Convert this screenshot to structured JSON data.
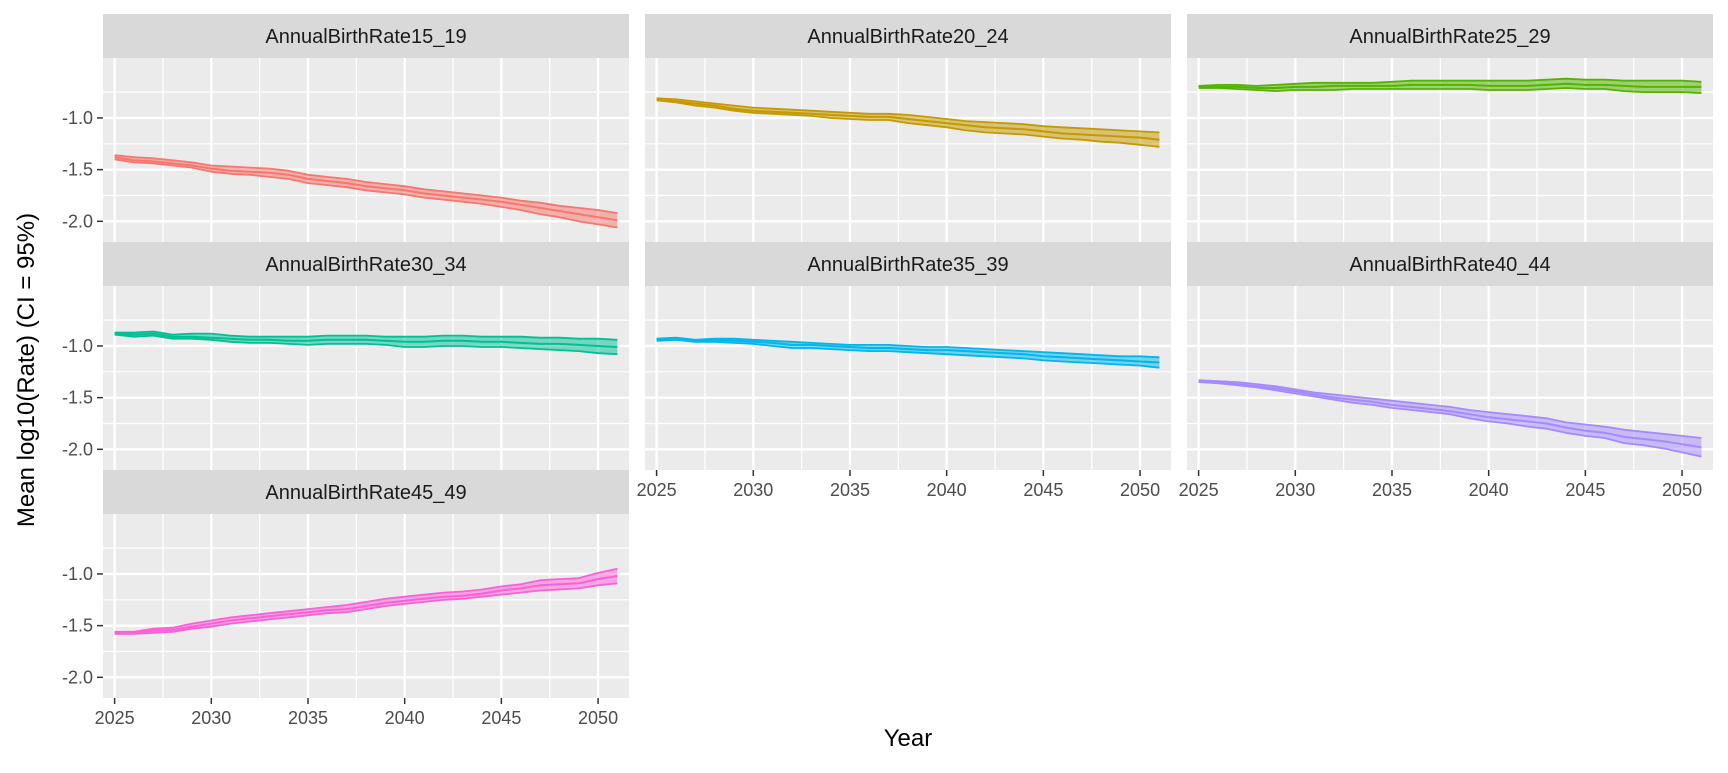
{
  "chart_data": {
    "type": "line",
    "layout": "faceted-grid",
    "xlabel": "Year",
    "ylabel": "Mean log10(Rate) (CI = 95%)",
    "xlim": [
      2024.4,
      2051.6
    ],
    "ylim": [
      -2.2,
      -0.42
    ],
    "x_ticks": [
      2025,
      2030,
      2035,
      2040,
      2045,
      2050
    ],
    "x_tick_labels": [
      "2025",
      "2030",
      "2035",
      "2040",
      "2045",
      "2050"
    ],
    "y_ticks": [
      -1.0,
      -1.5,
      -2.0
    ],
    "y_tick_labels": [
      "-1.0",
      "-1.5",
      "-2.0"
    ],
    "legend": "none",
    "grid": true,
    "x": [
      2025,
      2026,
      2027,
      2028,
      2029,
      2030,
      2031,
      2032,
      2033,
      2034,
      2035,
      2036,
      2037,
      2038,
      2039,
      2040,
      2041,
      2042,
      2043,
      2044,
      2045,
      2046,
      2047,
      2048,
      2049,
      2050,
      2051
    ],
    "facets": [
      {
        "title": "AnnualBirthRate15_19",
        "color": "#F8766D",
        "mean": [
          -1.38,
          -1.41,
          -1.42,
          -1.44,
          -1.46,
          -1.49,
          -1.51,
          -1.52,
          -1.53,
          -1.55,
          -1.59,
          -1.61,
          -1.63,
          -1.66,
          -1.68,
          -1.7,
          -1.73,
          -1.75,
          -1.77,
          -1.79,
          -1.81,
          -1.84,
          -1.87,
          -1.9,
          -1.93,
          -1.96,
          -1.99
        ],
        "lower": [
          -1.4,
          -1.43,
          -1.44,
          -1.46,
          -1.48,
          -1.52,
          -1.54,
          -1.55,
          -1.57,
          -1.59,
          -1.63,
          -1.65,
          -1.67,
          -1.7,
          -1.72,
          -1.74,
          -1.77,
          -1.79,
          -1.81,
          -1.83,
          -1.86,
          -1.89,
          -1.93,
          -1.96,
          -2.0,
          -2.03,
          -2.06
        ],
        "upper": [
          -1.36,
          -1.38,
          -1.39,
          -1.41,
          -1.43,
          -1.46,
          -1.47,
          -1.48,
          -1.49,
          -1.51,
          -1.55,
          -1.57,
          -1.59,
          -1.62,
          -1.64,
          -1.66,
          -1.69,
          -1.71,
          -1.73,
          -1.75,
          -1.77,
          -1.8,
          -1.82,
          -1.85,
          -1.87,
          -1.89,
          -1.92
        ]
      },
      {
        "title": "AnnualBirthRate20_24",
        "color": "#C49A00",
        "mean": [
          -0.82,
          -0.84,
          -0.86,
          -0.88,
          -0.91,
          -0.93,
          -0.94,
          -0.95,
          -0.96,
          -0.97,
          -0.98,
          -0.99,
          -0.99,
          -1.01,
          -1.03,
          -1.05,
          -1.07,
          -1.09,
          -1.1,
          -1.11,
          -1.13,
          -1.15,
          -1.16,
          -1.17,
          -1.18,
          -1.19,
          -1.21
        ],
        "lower": [
          -0.83,
          -0.85,
          -0.88,
          -0.9,
          -0.93,
          -0.95,
          -0.96,
          -0.97,
          -0.98,
          -1.0,
          -1.01,
          -1.02,
          -1.02,
          -1.05,
          -1.07,
          -1.09,
          -1.12,
          -1.14,
          -1.15,
          -1.16,
          -1.18,
          -1.2,
          -1.21,
          -1.23,
          -1.24,
          -1.26,
          -1.28
        ],
        "upper": [
          -0.81,
          -0.82,
          -0.84,
          -0.86,
          -0.88,
          -0.9,
          -0.91,
          -0.92,
          -0.93,
          -0.94,
          -0.95,
          -0.96,
          -0.96,
          -0.97,
          -0.99,
          -1.01,
          -1.03,
          -1.04,
          -1.05,
          -1.06,
          -1.08,
          -1.09,
          -1.1,
          -1.11,
          -1.12,
          -1.13,
          -1.14
        ]
      },
      {
        "title": "AnnualBirthRate25_29",
        "color": "#53B400",
        "mean": [
          -0.7,
          -0.7,
          -0.7,
          -0.71,
          -0.71,
          -0.7,
          -0.7,
          -0.69,
          -0.69,
          -0.69,
          -0.69,
          -0.68,
          -0.68,
          -0.68,
          -0.68,
          -0.69,
          -0.69,
          -0.69,
          -0.68,
          -0.67,
          -0.68,
          -0.68,
          -0.69,
          -0.7,
          -0.7,
          -0.7,
          -0.7
        ],
        "lower": [
          -0.71,
          -0.71,
          -0.72,
          -0.73,
          -0.74,
          -0.73,
          -0.73,
          -0.73,
          -0.72,
          -0.72,
          -0.72,
          -0.72,
          -0.72,
          -0.72,
          -0.72,
          -0.73,
          -0.73,
          -0.73,
          -0.72,
          -0.71,
          -0.72,
          -0.72,
          -0.74,
          -0.75,
          -0.75,
          -0.75,
          -0.76
        ],
        "upper": [
          -0.69,
          -0.68,
          -0.68,
          -0.69,
          -0.68,
          -0.67,
          -0.66,
          -0.66,
          -0.66,
          -0.66,
          -0.65,
          -0.64,
          -0.64,
          -0.64,
          -0.64,
          -0.64,
          -0.64,
          -0.64,
          -0.63,
          -0.62,
          -0.63,
          -0.63,
          -0.64,
          -0.64,
          -0.64,
          -0.64,
          -0.65
        ]
      },
      {
        "title": "AnnualBirthRate30_34",
        "color": "#00C094",
        "mean": [
          -0.88,
          -0.89,
          -0.88,
          -0.91,
          -0.91,
          -0.92,
          -0.93,
          -0.94,
          -0.94,
          -0.95,
          -0.95,
          -0.94,
          -0.94,
          -0.94,
          -0.95,
          -0.96,
          -0.96,
          -0.95,
          -0.95,
          -0.96,
          -0.96,
          -0.97,
          -0.98,
          -0.98,
          -0.99,
          -1.0,
          -1.01
        ],
        "lower": [
          -0.89,
          -0.91,
          -0.9,
          -0.93,
          -0.93,
          -0.94,
          -0.96,
          -0.97,
          -0.97,
          -0.98,
          -0.99,
          -0.98,
          -0.98,
          -0.98,
          -0.99,
          -1.01,
          -1.01,
          -1.0,
          -1.0,
          -1.01,
          -1.01,
          -1.02,
          -1.03,
          -1.04,
          -1.05,
          -1.07,
          -1.08
        ],
        "upper": [
          -0.87,
          -0.87,
          -0.86,
          -0.89,
          -0.88,
          -0.88,
          -0.9,
          -0.91,
          -0.91,
          -0.91,
          -0.91,
          -0.9,
          -0.9,
          -0.9,
          -0.91,
          -0.91,
          -0.91,
          -0.9,
          -0.9,
          -0.91,
          -0.91,
          -0.91,
          -0.92,
          -0.92,
          -0.93,
          -0.93,
          -0.94
        ]
      },
      {
        "title": "AnnualBirthRate35_39",
        "color": "#00B6EB",
        "mean": [
          -0.94,
          -0.93,
          -0.95,
          -0.94,
          -0.95,
          -0.96,
          -0.97,
          -0.99,
          -0.99,
          -1.0,
          -1.01,
          -1.02,
          -1.02,
          -1.03,
          -1.04,
          -1.04,
          -1.05,
          -1.06,
          -1.07,
          -1.08,
          -1.1,
          -1.11,
          -1.12,
          -1.13,
          -1.14,
          -1.15,
          -1.16
        ],
        "lower": [
          -0.95,
          -0.94,
          -0.96,
          -0.96,
          -0.97,
          -0.98,
          -1.0,
          -1.02,
          -1.02,
          -1.03,
          -1.04,
          -1.05,
          -1.05,
          -1.06,
          -1.07,
          -1.08,
          -1.09,
          -1.1,
          -1.11,
          -1.12,
          -1.14,
          -1.15,
          -1.16,
          -1.17,
          -1.18,
          -1.19,
          -1.21
        ],
        "upper": [
          -0.93,
          -0.92,
          -0.94,
          -0.93,
          -0.93,
          -0.94,
          -0.95,
          -0.96,
          -0.97,
          -0.98,
          -0.99,
          -0.99,
          -0.99,
          -1.0,
          -1.01,
          -1.01,
          -1.02,
          -1.03,
          -1.04,
          -1.05,
          -1.06,
          -1.07,
          -1.08,
          -1.09,
          -1.1,
          -1.1,
          -1.11
        ]
      },
      {
        "title": "AnnualBirthRate40_44",
        "color": "#A58AFF",
        "mean": [
          -1.34,
          -1.35,
          -1.37,
          -1.39,
          -1.41,
          -1.44,
          -1.47,
          -1.5,
          -1.52,
          -1.54,
          -1.57,
          -1.59,
          -1.61,
          -1.63,
          -1.66,
          -1.69,
          -1.71,
          -1.73,
          -1.75,
          -1.79,
          -1.82,
          -1.84,
          -1.88,
          -1.9,
          -1.92,
          -1.95,
          -1.98
        ],
        "lower": [
          -1.35,
          -1.36,
          -1.38,
          -1.4,
          -1.43,
          -1.46,
          -1.49,
          -1.52,
          -1.55,
          -1.57,
          -1.6,
          -1.62,
          -1.64,
          -1.66,
          -1.7,
          -1.73,
          -1.75,
          -1.78,
          -1.8,
          -1.84,
          -1.87,
          -1.89,
          -1.94,
          -1.96,
          -1.99,
          -2.03,
          -2.07
        ],
        "upper": [
          -1.33,
          -1.34,
          -1.35,
          -1.37,
          -1.39,
          -1.42,
          -1.45,
          -1.47,
          -1.49,
          -1.51,
          -1.53,
          -1.55,
          -1.57,
          -1.59,
          -1.62,
          -1.64,
          -1.66,
          -1.68,
          -1.7,
          -1.74,
          -1.76,
          -1.78,
          -1.81,
          -1.83,
          -1.85,
          -1.87,
          -1.89
        ]
      },
      {
        "title": "AnnualBirthRate45_49",
        "color": "#FB61D7",
        "mean": [
          -1.57,
          -1.57,
          -1.55,
          -1.54,
          -1.51,
          -1.48,
          -1.45,
          -1.43,
          -1.41,
          -1.39,
          -1.37,
          -1.35,
          -1.34,
          -1.31,
          -1.28,
          -1.26,
          -1.24,
          -1.22,
          -1.21,
          -1.19,
          -1.16,
          -1.14,
          -1.11,
          -1.1,
          -1.09,
          -1.05,
          -1.02
        ],
        "lower": [
          -1.58,
          -1.58,
          -1.57,
          -1.56,
          -1.53,
          -1.51,
          -1.48,
          -1.46,
          -1.44,
          -1.42,
          -1.4,
          -1.38,
          -1.37,
          -1.34,
          -1.31,
          -1.29,
          -1.27,
          -1.25,
          -1.24,
          -1.22,
          -1.2,
          -1.18,
          -1.16,
          -1.15,
          -1.14,
          -1.11,
          -1.09
        ],
        "upper": [
          -1.56,
          -1.56,
          -1.53,
          -1.52,
          -1.48,
          -1.45,
          -1.42,
          -1.4,
          -1.38,
          -1.36,
          -1.34,
          -1.32,
          -1.3,
          -1.27,
          -1.24,
          -1.22,
          -1.2,
          -1.18,
          -1.17,
          -1.15,
          -1.12,
          -1.1,
          -1.06,
          -1.05,
          -1.04,
          -0.99,
          -0.95
        ]
      }
    ]
  }
}
